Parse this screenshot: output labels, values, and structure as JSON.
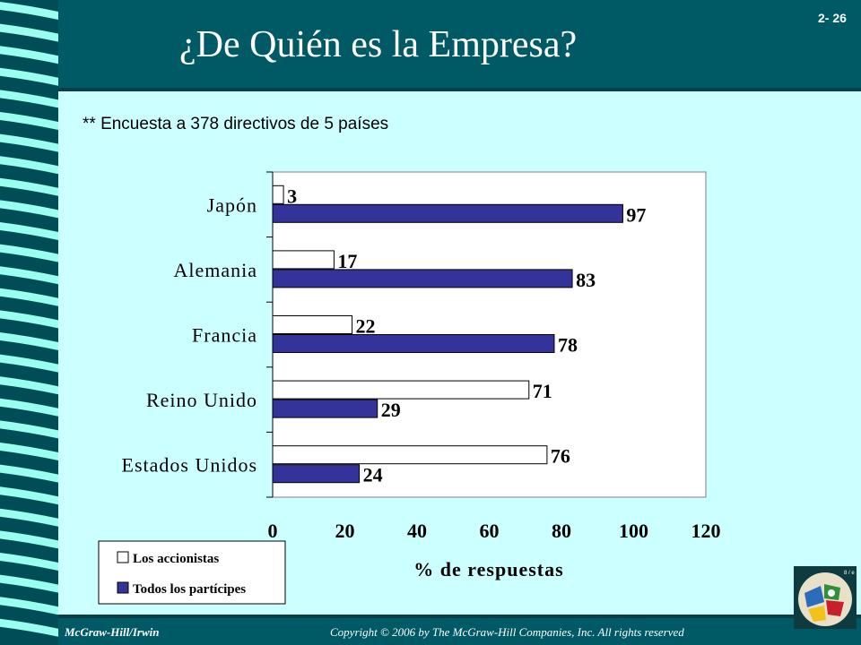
{
  "slide": {
    "title": "¿De Quién es la Empresa?",
    "number": "2- 26",
    "subtitle": "** Encuesta a 378 directivos de 5 países"
  },
  "footer": {
    "left": "McGraw-Hill/Irwin",
    "right": "Copyright © 2006 by The McGraw-Hill Companies, Inc. All rights reserved"
  },
  "chart_data": {
    "type": "bar",
    "orientation": "horizontal",
    "categories": [
      "Japón",
      "Alemania",
      "Francia",
      "Reino Unido",
      "Estados Unidos"
    ],
    "series": [
      {
        "name": "Los accionistas",
        "values": [
          3,
          17,
          22,
          71,
          76
        ],
        "color": "#ffffff"
      },
      {
        "name": "Todos los partícipes",
        "values": [
          97,
          83,
          78,
          29,
          24
        ],
        "color": "#333399"
      }
    ],
    "xlabel": "% de respuestas",
    "xlim": [
      0,
      120
    ],
    "xticks": [
      "0",
      "20",
      "40",
      "60",
      "80",
      "100",
      "120"
    ],
    "legend": "bottom-left",
    "grid": false
  },
  "colors": {
    "background": "#ccffff",
    "header": "#005a66",
    "bar_outline": "#000000"
  }
}
